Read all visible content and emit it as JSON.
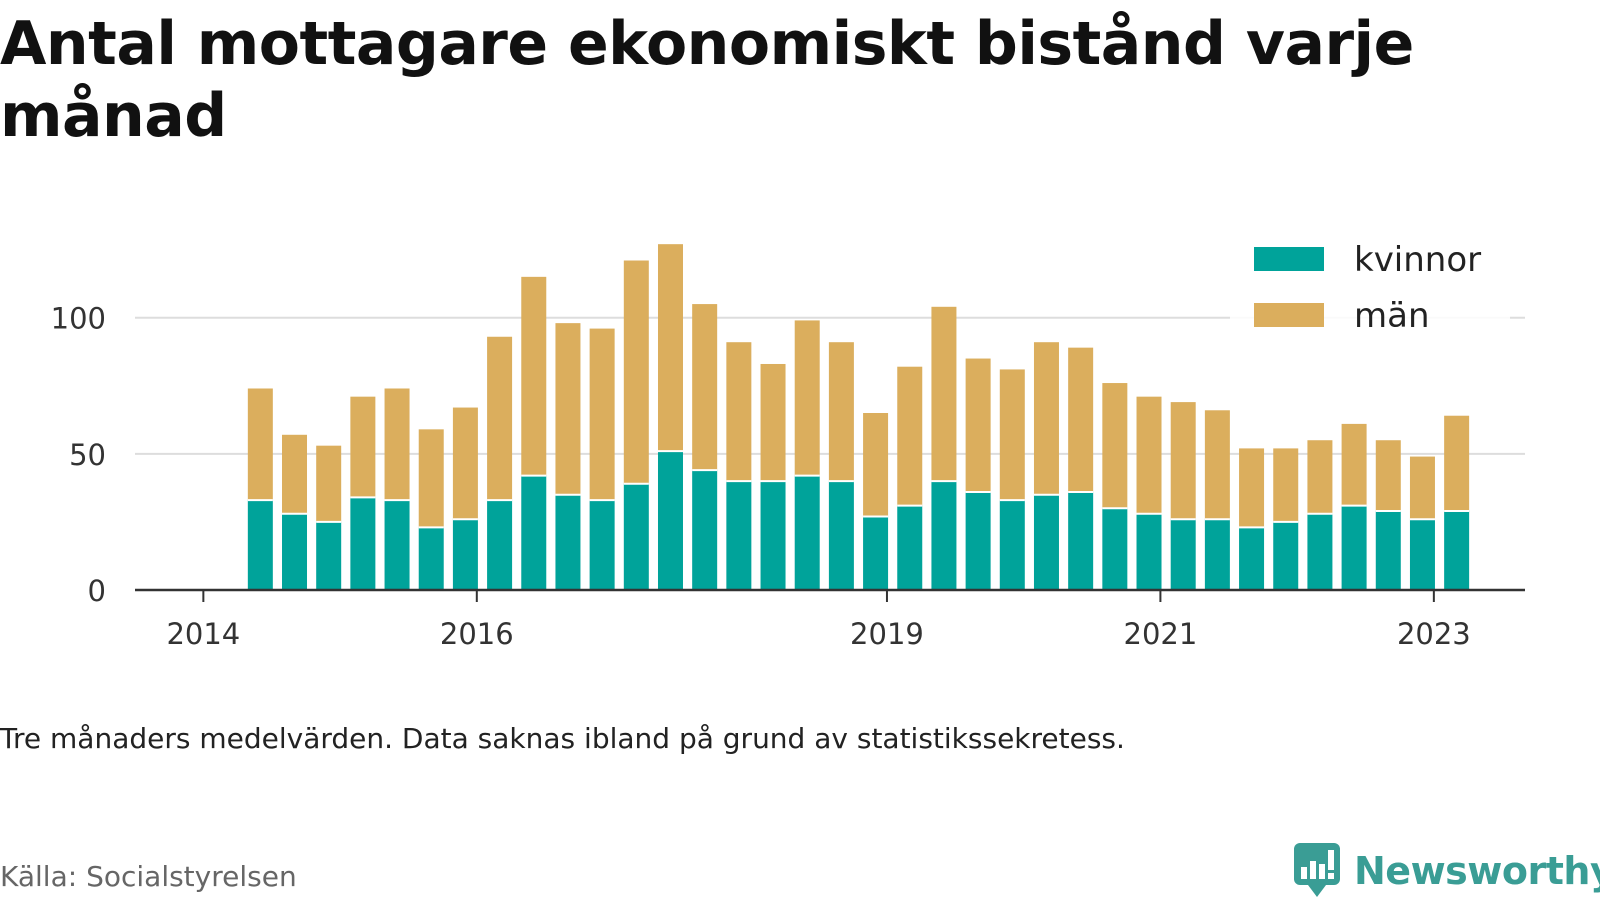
{
  "title": "Antal mottagare ekonomiskt bistånd varje månad",
  "note": "Tre månaders medelvärden. Data saknas ibland på grund av statistikssekretess.",
  "source": "Källa: Socialstyrelsen",
  "brand": {
    "name": "Newsworthy",
    "icon": "newsworthy-logo-icon",
    "color": "#3a9d95"
  },
  "colors": {
    "kvinnor": "#00a39a",
    "man": "#dbae5d",
    "grid": "#dddddd",
    "axis": "#333333"
  },
  "chart_data": {
    "type": "bar",
    "stacked": true,
    "x": [
      "2014-06",
      "2014-09",
      "2014-12",
      "2015-03",
      "2015-06",
      "2015-09",
      "2015-12",
      "2016-03",
      "2016-06",
      "2016-09",
      "2016-12",
      "2017-03",
      "2017-06",
      "2017-09",
      "2017-12",
      "2018-03",
      "2018-06",
      "2018-09",
      "2018-12",
      "2019-03",
      "2019-06",
      "2019-09",
      "2019-12",
      "2020-03",
      "2020-06",
      "2020-09",
      "2020-12",
      "2021-03",
      "2021-06",
      "2021-09",
      "2021-12",
      "2022-03",
      "2022-06",
      "2022-09",
      "2022-12",
      "2023-03"
    ],
    "series": [
      {
        "name": "kvinnor",
        "color": "#00a39a",
        "values": [
          33,
          28,
          25,
          34,
          33,
          23,
          26,
          33,
          42,
          35,
          33,
          39,
          51,
          44,
          40,
          40,
          42,
          40,
          27,
          31,
          40,
          36,
          33,
          35,
          36,
          30,
          28,
          26,
          26,
          23,
          25,
          28,
          31,
          29,
          26,
          29
        ]
      },
      {
        "name": "män",
        "color": "#dbae5d",
        "values": [
          41,
          29,
          28,
          37,
          41,
          36,
          41,
          60,
          73,
          63,
          63,
          82,
          76,
          61,
          51,
          43,
          57,
          51,
          38,
          51,
          64,
          49,
          48,
          56,
          53,
          46,
          43,
          43,
          40,
          29,
          27,
          27,
          30,
          26,
          23,
          35
        ]
      }
    ],
    "xticks": [
      "2014",
      "2016",
      "2019",
      "2021",
      "2023"
    ],
    "xtick_dates": [
      "2014-01",
      "2016-01",
      "2019-01",
      "2021-01",
      "2023-01"
    ],
    "yticks": [
      0,
      50,
      100
    ],
    "ylim": [
      0,
      130
    ],
    "xlim": [
      "2013-07",
      "2023-09"
    ],
    "grid": true,
    "legend": {
      "placement": "top-right",
      "entries": [
        "kvinnor",
        "män"
      ]
    },
    "xlabel": "",
    "ylabel": ""
  }
}
